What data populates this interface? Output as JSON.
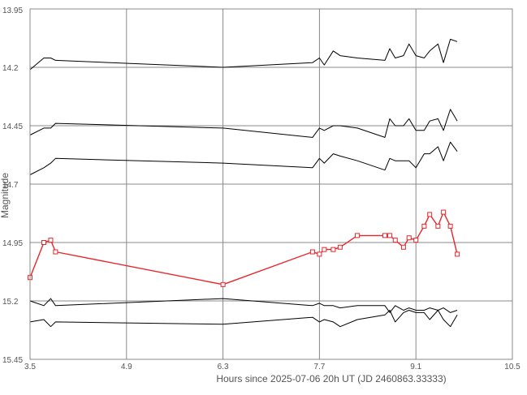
{
  "chart_data": {
    "type": "line",
    "title": "",
    "xlabel": "Hours since 2025-07-06 20h UT (JD 2460863.33333)",
    "ylabel": "Magnitude",
    "xlim": [
      3.5,
      10.5
    ],
    "ylim": [
      13.95,
      15.45
    ],
    "y_inverted": true,
    "grid": true,
    "x_ticks": [
      "3.5",
      "4.9",
      "6.3",
      "7.7",
      "9.1",
      "10.5"
    ],
    "y_ticks": [
      "13.95",
      "14.2",
      "14.45",
      "14.7",
      "14.95",
      "15.2",
      "15.45"
    ],
    "colors": {
      "target": "#e8262a",
      "comparison": "#000000",
      "grid": "#888888"
    },
    "series": [
      {
        "role": "comparison",
        "x": [
          3.5,
          3.7,
          3.8,
          3.87,
          6.3,
          7.6,
          7.7,
          7.77,
          7.9,
          8.0,
          8.25,
          8.65,
          8.72,
          8.8,
          8.92,
          9.0,
          9.1,
          9.22,
          9.3,
          9.42,
          9.5,
          9.6,
          9.7
        ],
        "y": [
          14.21,
          14.16,
          14.16,
          14.17,
          14.2,
          14.18,
          14.16,
          14.19,
          14.13,
          14.15,
          14.16,
          14.17,
          14.12,
          14.16,
          14.15,
          14.1,
          14.15,
          14.16,
          14.13,
          14.1,
          14.18,
          14.08,
          14.09
        ]
      },
      {
        "role": "comparison",
        "x": [
          3.5,
          3.7,
          3.8,
          3.87,
          6.3,
          7.6,
          7.7,
          7.77,
          7.9,
          8.0,
          8.25,
          8.65,
          8.72,
          8.8,
          8.92,
          9.0,
          9.1,
          9.22,
          9.3,
          9.42,
          9.5,
          9.6,
          9.7
        ],
        "y": [
          14.49,
          14.46,
          14.46,
          14.44,
          14.46,
          14.5,
          14.46,
          14.47,
          14.45,
          14.45,
          14.46,
          14.5,
          14.42,
          14.45,
          14.45,
          14.42,
          14.47,
          14.47,
          14.43,
          14.42,
          14.47,
          14.38,
          14.43
        ]
      },
      {
        "role": "comparison",
        "x": [
          3.5,
          3.7,
          3.8,
          3.87,
          6.3,
          7.6,
          7.7,
          7.77,
          7.9,
          8.0,
          8.25,
          8.65,
          8.72,
          8.8,
          8.92,
          9.0,
          9.1,
          9.22,
          9.3,
          9.42,
          9.5,
          9.6,
          9.7
        ],
        "y": [
          14.66,
          14.63,
          14.61,
          14.59,
          14.61,
          14.63,
          14.59,
          14.61,
          14.57,
          14.58,
          14.6,
          14.64,
          14.59,
          14.6,
          14.6,
          14.6,
          14.63,
          14.57,
          14.57,
          14.54,
          14.6,
          14.52,
          14.56
        ]
      },
      {
        "role": "target",
        "x": [
          3.5,
          3.7,
          3.8,
          3.87,
          6.3,
          7.6,
          7.7,
          7.77,
          7.9,
          8.0,
          8.25,
          8.65,
          8.72,
          8.8,
          8.92,
          9.0,
          9.1,
          9.22,
          9.3,
          9.42,
          9.5,
          9.6,
          9.7
        ],
        "y": [
          15.1,
          14.95,
          14.94,
          14.99,
          15.13,
          14.99,
          15.0,
          14.98,
          14.98,
          14.97,
          14.92,
          14.92,
          14.92,
          14.94,
          14.97,
          14.93,
          14.94,
          14.88,
          14.83,
          14.88,
          14.82,
          14.88,
          15.0
        ]
      },
      {
        "role": "comparison",
        "x": [
          3.5,
          3.7,
          3.8,
          3.87,
          6.3,
          7.6,
          7.7,
          7.77,
          7.9,
          8.0,
          8.25,
          8.65,
          8.72,
          8.8,
          8.92,
          9.0,
          9.1,
          9.22,
          9.3,
          9.42,
          9.5,
          9.6,
          9.7
        ],
        "y": [
          15.2,
          15.22,
          15.19,
          15.22,
          15.19,
          15.22,
          15.21,
          15.22,
          15.22,
          15.23,
          15.22,
          15.22,
          15.25,
          15.22,
          15.24,
          15.23,
          15.24,
          15.24,
          15.23,
          15.24,
          15.23,
          15.25,
          15.24
        ]
      },
      {
        "role": "comparison",
        "x": [
          3.5,
          3.7,
          3.8,
          3.87,
          6.3,
          7.6,
          7.7,
          7.77,
          7.9,
          8.0,
          8.25,
          8.65,
          8.72,
          8.8,
          8.92,
          9.0,
          9.1,
          9.22,
          9.3,
          9.42,
          9.5,
          9.6,
          9.7
        ],
        "y": [
          15.29,
          15.28,
          15.31,
          15.29,
          15.3,
          15.27,
          15.29,
          15.28,
          15.29,
          15.31,
          15.28,
          15.26,
          15.24,
          15.29,
          15.25,
          15.24,
          15.25,
          15.25,
          15.28,
          15.24,
          15.28,
          15.31,
          15.26
        ]
      }
    ]
  }
}
